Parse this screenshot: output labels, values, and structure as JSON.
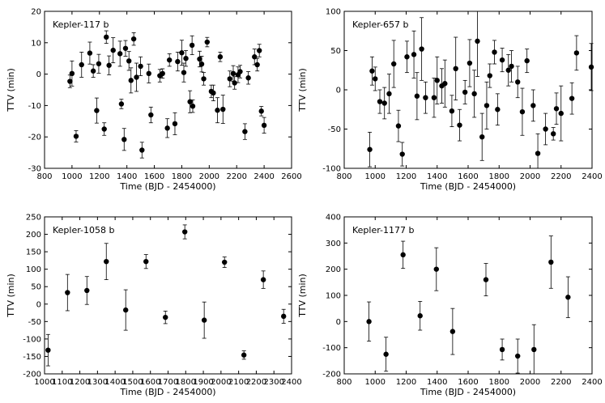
{
  "chart_data": [
    {
      "type": "scatter",
      "title": "Kepler-117 b",
      "xlabel": "Time (BJD - 2454000)",
      "ylabel": "TTV (min)",
      "xlim": [
        800,
        2600
      ],
      "ylim": [
        -30,
        20
      ],
      "xticks": [
        800,
        1000,
        1200,
        1400,
        1600,
        1800,
        2000,
        2200,
        2400,
        2600
      ],
      "yticks": [
        -30,
        -20,
        -10,
        0,
        10,
        20
      ],
      "points": [
        {
          "x": 985,
          "y": -2.3,
          "err": 2.0
        },
        {
          "x": 1000,
          "y": 0.2,
          "err": 4.0
        },
        {
          "x": 1030,
          "y": -19.8,
          "err": 1.8
        },
        {
          "x": 1070,
          "y": 3.0,
          "err": 4.0
        },
        {
          "x": 1130,
          "y": 6.7,
          "err": 3.5
        },
        {
          "x": 1155,
          "y": 1.0,
          "err": 2.0
        },
        {
          "x": 1180,
          "y": -11.6,
          "err": 4.0
        },
        {
          "x": 1195,
          "y": 3.3,
          "err": 3.0
        },
        {
          "x": 1235,
          "y": -17.5,
          "err": 2.0
        },
        {
          "x": 1250,
          "y": 11.8,
          "err": 2.0
        },
        {
          "x": 1270,
          "y": 2.8,
          "err": 3.0
        },
        {
          "x": 1300,
          "y": 7.6,
          "err": 4.0
        },
        {
          "x": 1350,
          "y": 6.5,
          "err": 4.0
        },
        {
          "x": 1360,
          "y": -9.5,
          "err": 1.5
        },
        {
          "x": 1380,
          "y": -20.8,
          "err": 3.5
        },
        {
          "x": 1390,
          "y": 8.2,
          "err": 2.5
        },
        {
          "x": 1415,
          "y": 4.2,
          "err": 3.0
        },
        {
          "x": 1430,
          "y": -2.0,
          "err": 4.0
        },
        {
          "x": 1450,
          "y": 11.2,
          "err": 2.0
        },
        {
          "x": 1470,
          "y": -1.0,
          "err": 4.5
        },
        {
          "x": 1500,
          "y": 2.5,
          "err": 3.0
        },
        {
          "x": 1510,
          "y": -24.2,
          "err": 2.5
        },
        {
          "x": 1560,
          "y": 0.2,
          "err": 3.0
        },
        {
          "x": 1575,
          "y": -13.0,
          "err": 2.5
        },
        {
          "x": 1640,
          "y": -0.5,
          "err": 2.0
        },
        {
          "x": 1660,
          "y": 0.2,
          "err": 1.5
        },
        {
          "x": 1695,
          "y": -17.2,
          "err": 3.0
        },
        {
          "x": 1710,
          "y": 4.5,
          "err": 2.0
        },
        {
          "x": 1750,
          "y": -15.8,
          "err": 3.5
        },
        {
          "x": 1770,
          "y": 4.0,
          "err": 3.0
        },
        {
          "x": 1800,
          "y": 6.8,
          "err": 4.0
        },
        {
          "x": 1815,
          "y": 0.5,
          "err": 3.0
        },
        {
          "x": 1830,
          "y": 5.0,
          "err": 2.5
        },
        {
          "x": 1860,
          "y": -8.8,
          "err": 3.5
        },
        {
          "x": 1875,
          "y": 9.2,
          "err": 3.0
        },
        {
          "x": 1880,
          "y": -10.2,
          "err": 2.0
        },
        {
          "x": 1930,
          "y": 4.8,
          "err": 2.5
        },
        {
          "x": 1945,
          "y": 3.2,
          "err": 2.5
        },
        {
          "x": 1960,
          "y": -1.5,
          "err": 2.0
        },
        {
          "x": 1985,
          "y": 10.2,
          "err": 1.5
        },
        {
          "x": 2015,
          "y": -5.5,
          "err": 2.0
        },
        {
          "x": 2030,
          "y": -6.0,
          "err": 2.5
        },
        {
          "x": 2060,
          "y": -11.5,
          "err": 4.0
        },
        {
          "x": 2080,
          "y": 5.5,
          "err": 1.5
        },
        {
          "x": 2100,
          "y": -11.2,
          "err": 4.5
        },
        {
          "x": 2150,
          "y": -1.5,
          "err": 2.5
        },
        {
          "x": 2175,
          "y": 0.2,
          "err": 2.5
        },
        {
          "x": 2185,
          "y": -2.8,
          "err": 2.0
        },
        {
          "x": 2210,
          "y": -0.2,
          "err": 2.5
        },
        {
          "x": 2225,
          "y": 0.8,
          "err": 2.0
        },
        {
          "x": 2260,
          "y": -18.3,
          "err": 2.5
        },
        {
          "x": 2285,
          "y": -1.2,
          "err": 2.0
        },
        {
          "x": 2330,
          "y": 5.5,
          "err": 2.5
        },
        {
          "x": 2350,
          "y": 3.0,
          "err": 2.0
        },
        {
          "x": 2365,
          "y": 7.5,
          "err": 2.0
        },
        {
          "x": 2380,
          "y": -11.8,
          "err": 1.5
        },
        {
          "x": 2400,
          "y": -16.3,
          "err": 2.5
        }
      ]
    },
    {
      "type": "scatter",
      "title": "Kepler-657 b",
      "xlabel": "Time (BJD - 2454000)",
      "ylabel": "TTV (min)",
      "xlim": [
        800,
        2400
      ],
      "ylim": [
        -100,
        100
      ],
      "xticks": [
        800,
        1000,
        1200,
        1400,
        1600,
        1800,
        2000,
        2200,
        2400
      ],
      "yticks": [
        -100,
        -50,
        0,
        50,
        100
      ],
      "points": [
        {
          "x": 965,
          "y": -76,
          "err": 22
        },
        {
          "x": 980,
          "y": 24,
          "err": 18
        },
        {
          "x": 1000,
          "y": 14,
          "err": 15
        },
        {
          "x": 1030,
          "y": -15,
          "err": 15
        },
        {
          "x": 1060,
          "y": -17,
          "err": 20
        },
        {
          "x": 1090,
          "y": -5,
          "err": 25
        },
        {
          "x": 1120,
          "y": 33,
          "err": 30
        },
        {
          "x": 1150,
          "y": -46,
          "err": 20
        },
        {
          "x": 1175,
          "y": -82,
          "err": 15
        },
        {
          "x": 1205,
          "y": 42,
          "err": 20
        },
        {
          "x": 1250,
          "y": 45,
          "err": 30
        },
        {
          "x": 1270,
          "y": -8,
          "err": 30
        },
        {
          "x": 1300,
          "y": 52,
          "err": 40
        },
        {
          "x": 1325,
          "y": -10,
          "err": 20
        },
        {
          "x": 1380,
          "y": -10,
          "err": 25
        },
        {
          "x": 1400,
          "y": 12,
          "err": 30
        },
        {
          "x": 1430,
          "y": 5,
          "err": 22
        },
        {
          "x": 1450,
          "y": 8,
          "err": 30
        },
        {
          "x": 1495,
          "y": -27,
          "err": 20
        },
        {
          "x": 1520,
          "y": 27,
          "err": 40
        },
        {
          "x": 1545,
          "y": -45,
          "err": 20
        },
        {
          "x": 1580,
          "y": -3,
          "err": 15
        },
        {
          "x": 1610,
          "y": 34,
          "err": 30
        },
        {
          "x": 1640,
          "y": -5,
          "err": 30
        },
        {
          "x": 1660,
          "y": 62,
          "err": 45
        },
        {
          "x": 1690,
          "y": -60,
          "err": 30
        },
        {
          "x": 1720,
          "y": -20,
          "err": 30
        },
        {
          "x": 1740,
          "y": 18,
          "err": 15
        },
        {
          "x": 1770,
          "y": 48,
          "err": 15
        },
        {
          "x": 1790,
          "y": -25,
          "err": 20
        },
        {
          "x": 1820,
          "y": 38,
          "err": 15
        },
        {
          "x": 1860,
          "y": 25,
          "err": 20
        },
        {
          "x": 1880,
          "y": 30,
          "err": 20
        },
        {
          "x": 1920,
          "y": 10,
          "err": 20
        },
        {
          "x": 1950,
          "y": -28,
          "err": 30
        },
        {
          "x": 1980,
          "y": 37,
          "err": 15
        },
        {
          "x": 2020,
          "y": -20,
          "err": 20
        },
        {
          "x": 2050,
          "y": -81,
          "err": 25
        },
        {
          "x": 2100,
          "y": -50,
          "err": 20
        },
        {
          "x": 2150,
          "y": -56,
          "err": 8
        },
        {
          "x": 2170,
          "y": -24,
          "err": 20
        },
        {
          "x": 2200,
          "y": -30,
          "err": 35
        },
        {
          "x": 2270,
          "y": -11,
          "err": 20
        },
        {
          "x": 2300,
          "y": 47,
          "err": 22
        },
        {
          "x": 2395,
          "y": 29,
          "err": 30
        }
      ]
    },
    {
      "type": "scatter",
      "title": "Kepler-1058 b",
      "xlabel": "Time (BJD - 2454000)",
      "ylabel": "TTV (min)",
      "xlim": [
        1000,
        2400
      ],
      "ylim": [
        -200,
        250
      ],
      "xticks": [
        1000,
        1100,
        1200,
        1300,
        1400,
        1500,
        1600,
        1700,
        1800,
        1900,
        2000,
        2100,
        2200,
        2300,
        2400
      ],
      "yticks": [
        -200,
        -150,
        -100,
        -50,
        0,
        50,
        100,
        150,
        200,
        250
      ],
      "points": [
        {
          "x": 1020,
          "y": -132,
          "err": 45
        },
        {
          "x": 1130,
          "y": 33,
          "err": 52
        },
        {
          "x": 1240,
          "y": 39,
          "err": 40
        },
        {
          "x": 1350,
          "y": 122,
          "err": 52
        },
        {
          "x": 1460,
          "y": -17,
          "err": 58
        },
        {
          "x": 1575,
          "y": 122,
          "err": 20
        },
        {
          "x": 1685,
          "y": -38,
          "err": 18
        },
        {
          "x": 1795,
          "y": 207,
          "err": 20
        },
        {
          "x": 1905,
          "y": -46,
          "err": 52
        },
        {
          "x": 2020,
          "y": 120,
          "err": 15
        },
        {
          "x": 2130,
          "y": -146,
          "err": 12
        },
        {
          "x": 2240,
          "y": 70,
          "err": 25
        },
        {
          "x": 2355,
          "y": -35,
          "err": 20
        }
      ]
    },
    {
      "type": "scatter",
      "title": "Kepler-1177 b",
      "xlabel": "Time (BJD - 2454000)",
      "ylabel": "TTV (min)",
      "xlim": [
        800,
        2400
      ],
      "ylim": [
        -200,
        400
      ],
      "xticks": [
        800,
        1000,
        1200,
        1400,
        1600,
        1800,
        2000,
        2200,
        2400
      ],
      "yticks": [
        -200,
        -100,
        0,
        100,
        200,
        300,
        400
      ],
      "points": [
        {
          "x": 960,
          "y": 0,
          "err": 75
        },
        {
          "x": 1070,
          "y": -125,
          "err": 65
        },
        {
          "x": 1180,
          "y": 255,
          "err": 52
        },
        {
          "x": 1290,
          "y": 22,
          "err": 55
        },
        {
          "x": 1395,
          "y": 200,
          "err": 82
        },
        {
          "x": 1500,
          "y": -38,
          "err": 88
        },
        {
          "x": 1715,
          "y": 160,
          "err": 62
        },
        {
          "x": 1820,
          "y": -107,
          "err": 40
        },
        {
          "x": 1920,
          "y": -132,
          "err": 65
        },
        {
          "x": 2025,
          "y": -107,
          "err": 95
        },
        {
          "x": 2135,
          "y": 227,
          "err": 100
        },
        {
          "x": 2245,
          "y": 93,
          "err": 78
        }
      ]
    }
  ]
}
